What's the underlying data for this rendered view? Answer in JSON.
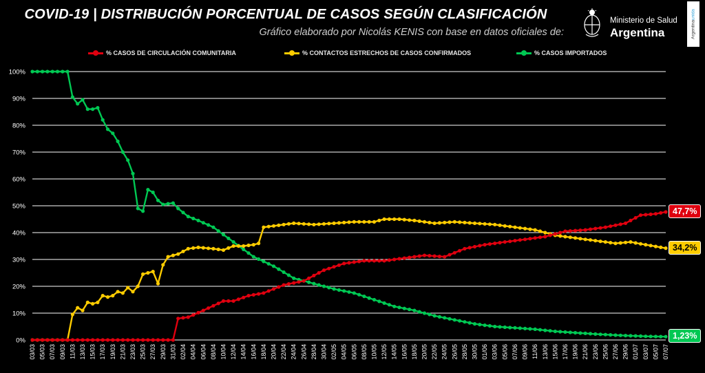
{
  "header": {
    "title": "COVID-19  |  DISTRIBUCIÓN PORCENTUAL DE CASOS SEGÚN CLASIFICACIÓN",
    "subtitle": "Gráfico elaborado por Nicolás KENIS con base en datos oficiales de:",
    "org_line1": "Ministerio de Salud",
    "org_line2": "Argentina",
    "tag_prefix": "Argentina",
    "tag_suffix": "unida"
  },
  "colors": {
    "red": "#e0000f",
    "yellow": "#ffcc00",
    "green": "#00c853",
    "grid": "#ffffff",
    "background": "#000000"
  },
  "chart_data": {
    "type": "line",
    "ylim": [
      0,
      100
    ],
    "yticks": [
      "0%",
      "10%",
      "20%",
      "30%",
      "40%",
      "50%",
      "60%",
      "70%",
      "80%",
      "90%",
      "100%"
    ],
    "x_start": "03/03",
    "x_end": "07/07",
    "xticks": [
      "03/03",
      "05/03",
      "07/03",
      "09/03",
      "11/03",
      "13/03",
      "15/03",
      "17/03",
      "19/03",
      "21/03",
      "23/03",
      "25/03",
      "27/03",
      "29/03",
      "31/03",
      "02/04",
      "04/04",
      "06/04",
      "08/04",
      "10/04",
      "12/04",
      "14/04",
      "16/04",
      "18/04",
      "20/04",
      "22/04",
      "24/04",
      "26/04",
      "28/04",
      "30/04",
      "02/05",
      "04/05",
      "06/05",
      "08/05",
      "10/05",
      "12/05",
      "14/05",
      "16/05",
      "18/05",
      "20/05",
      "22/05",
      "24/05",
      "26/05",
      "28/05",
      "30/05",
      "01/06",
      "03/06",
      "05/06",
      "07/06",
      "09/06",
      "11/06",
      "13/06",
      "15/06",
      "17/06",
      "19/06",
      "21/06",
      "23/06",
      "25/06",
      "27/06",
      "29/06",
      "01/07",
      "03/07",
      "05/07",
      "07/07"
    ],
    "series": [
      {
        "name": "% CASOS DE CIRCULACIÓN COMUNITARIA",
        "color": "#e0000f",
        "end_label": "47,7%",
        "points": [
          [
            "03/03",
            0
          ],
          [
            "31/03",
            0
          ],
          [
            "01/04",
            8
          ],
          [
            "03/04",
            8.5
          ],
          [
            "06/04",
            11
          ],
          [
            "10/04",
            14.5
          ],
          [
            "12/04",
            14.5
          ],
          [
            "15/04",
            16.5
          ],
          [
            "18/04",
            17.5
          ],
          [
            "22/04",
            20.5
          ],
          [
            "26/04",
            22
          ],
          [
            "30/04",
            26
          ],
          [
            "04/05",
            28.5
          ],
          [
            "08/05",
            29.5
          ],
          [
            "12/05",
            29.5
          ],
          [
            "16/05",
            30.5
          ],
          [
            "20/05",
            31.5
          ],
          [
            "24/05",
            31
          ],
          [
            "28/05",
            34
          ],
          [
            "01/06",
            35.5
          ],
          [
            "05/06",
            36.5
          ],
          [
            "09/06",
            37.5
          ],
          [
            "13/06",
            38.5
          ],
          [
            "17/06",
            40.5
          ],
          [
            "21/06",
            41
          ],
          [
            "25/06",
            42
          ],
          [
            "29/06",
            43.5
          ],
          [
            "02/07",
            46.5
          ],
          [
            "05/07",
            47
          ],
          [
            "07/07",
            47.7
          ]
        ]
      },
      {
        "name": "% CONTACTOS ESTRECHOS DE CASOS CONFIRMADOS",
        "color": "#ffcc00",
        "end_label": "34,2%",
        "points": [
          [
            "03/03",
            0
          ],
          [
            "10/03",
            0
          ],
          [
            "11/03",
            9.5
          ],
          [
            "12/03",
            12
          ],
          [
            "13/03",
            11
          ],
          [
            "14/03",
            14
          ],
          [
            "15/03",
            13.5
          ],
          [
            "16/03",
            14
          ],
          [
            "17/03",
            16.5
          ],
          [
            "18/03",
            16
          ],
          [
            "19/03",
            16.5
          ],
          [
            "20/03",
            18
          ],
          [
            "21/03",
            17.5
          ],
          [
            "22/03",
            19.5
          ],
          [
            "23/03",
            18
          ],
          [
            "24/03",
            20
          ],
          [
            "25/03",
            24.5
          ],
          [
            "26/03",
            25
          ],
          [
            "27/03",
            25.5
          ],
          [
            "28/03",
            21
          ],
          [
            "29/03",
            28
          ],
          [
            "30/03",
            31
          ],
          [
            "01/04",
            32
          ],
          [
            "03/04",
            34
          ],
          [
            "05/04",
            34.5
          ],
          [
            "08/04",
            34
          ],
          [
            "10/04",
            33.5
          ],
          [
            "12/04",
            35
          ],
          [
            "14/04",
            35
          ],
          [
            "16/04",
            35.5
          ],
          [
            "17/04",
            36
          ],
          [
            "18/04",
            42
          ],
          [
            "20/04",
            42.5
          ],
          [
            "22/04",
            43
          ],
          [
            "24/04",
            43.5
          ],
          [
            "28/04",
            43
          ],
          [
            "02/05",
            43.5
          ],
          [
            "06/05",
            44
          ],
          [
            "10/05",
            44
          ],
          [
            "12/05",
            45
          ],
          [
            "15/05",
            45
          ],
          [
            "18/05",
            44.5
          ],
          [
            "22/05",
            43.5
          ],
          [
            "26/05",
            44
          ],
          [
            "30/05",
            43.5
          ],
          [
            "03/06",
            43
          ],
          [
            "07/06",
            42
          ],
          [
            "11/06",
            41
          ],
          [
            "15/06",
            39
          ],
          [
            "19/06",
            38
          ],
          [
            "23/06",
            37
          ],
          [
            "27/06",
            36
          ],
          [
            "30/06",
            36.5
          ],
          [
            "03/07",
            35.5
          ],
          [
            "07/07",
            34.2
          ]
        ]
      },
      {
        "name": "% CASOS IMPORTADOS",
        "color": "#00c853",
        "end_label": "1,23%",
        "points": [
          [
            "03/03",
            100
          ],
          [
            "10/03",
            100
          ],
          [
            "11/03",
            90.5
          ],
          [
            "12/03",
            88
          ],
          [
            "13/03",
            89.5
          ],
          [
            "14/03",
            86
          ],
          [
            "15/03",
            86
          ],
          [
            "16/03",
            86.5
          ],
          [
            "17/03",
            82
          ],
          [
            "18/03",
            78.5
          ],
          [
            "19/03",
            77
          ],
          [
            "20/03",
            74
          ],
          [
            "21/03",
            70
          ],
          [
            "22/03",
            67
          ],
          [
            "23/03",
            62
          ],
          [
            "24/03",
            49
          ],
          [
            "25/03",
            48
          ],
          [
            "26/03",
            56
          ],
          [
            "27/03",
            55
          ],
          [
            "28/03",
            52
          ],
          [
            "29/03",
            50.5
          ],
          [
            "31/03",
            51
          ],
          [
            "01/04",
            49
          ],
          [
            "03/04",
            46
          ],
          [
            "05/04",
            44.5
          ],
          [
            "08/04",
            42
          ],
          [
            "12/04",
            36.5
          ],
          [
            "16/04",
            31
          ],
          [
            "20/04",
            27.5
          ],
          [
            "24/04",
            23
          ],
          [
            "28/04",
            21
          ],
          [
            "02/05",
            19
          ],
          [
            "06/05",
            17.5
          ],
          [
            "10/05",
            15
          ],
          [
            "14/05",
            12.5
          ],
          [
            "18/05",
            11
          ],
          [
            "22/05",
            9
          ],
          [
            "26/05",
            7.5
          ],
          [
            "30/05",
            6
          ],
          [
            "03/06",
            5
          ],
          [
            "07/06",
            4.5
          ],
          [
            "11/06",
            4
          ],
          [
            "15/06",
            3.2
          ],
          [
            "19/06",
            2.7
          ],
          [
            "23/06",
            2.2
          ],
          [
            "27/06",
            1.8
          ],
          [
            "01/07",
            1.5
          ],
          [
            "04/07",
            1.3
          ],
          [
            "07/07",
            1.23
          ]
        ]
      }
    ]
  }
}
